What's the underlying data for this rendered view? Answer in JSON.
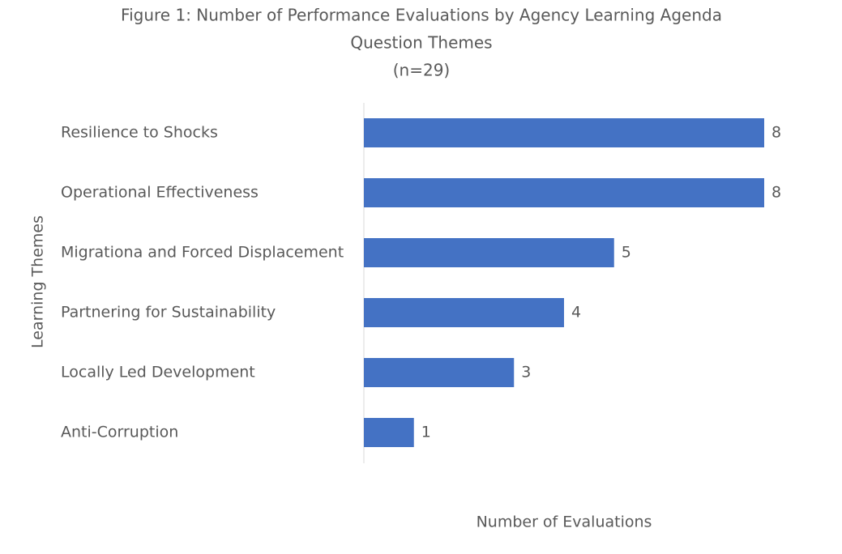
{
  "chart_data": {
    "type": "bar",
    "orientation": "horizontal",
    "title": [
      "Figure 1: Number of Performance Evaluations by Agency Learning Agenda",
      "Question Themes"
    ],
    "subtitle": "(n=29)",
    "y_axis_label": "Learning Themes",
    "x_axis_label": "Number of Evaluations",
    "categories": [
      "Resilience to Shocks",
      "Operational Effectiveness",
      "Migrationa and Forced Displacement",
      "Partnering for Sustainability",
      "Locally Led Development",
      "Anti-Corruption"
    ],
    "values": [
      8,
      8,
      5,
      4,
      3,
      1
    ],
    "color": "#4472c4",
    "xlim": [
      0,
      8
    ]
  }
}
